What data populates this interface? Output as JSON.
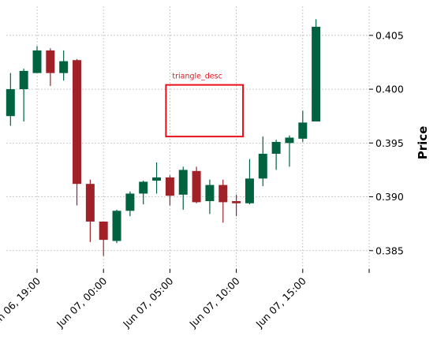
{
  "chart_data": {
    "type": "candlestick",
    "title": "",
    "ylabel": "Price",
    "xlabel": "",
    "y_axis_side": "right",
    "ylim": [
      0.3833,
      0.4077
    ],
    "yticks": [
      0.385,
      0.39,
      0.395,
      0.4,
      0.405
    ],
    "ytick_labels": [
      "0.385",
      "0.390",
      "0.395",
      "0.400",
      "0.405"
    ],
    "xticks": [
      {
        "index": 0,
        "label": ""
      },
      {
        "index": 5,
        "label": "Jun 06, 19:00"
      },
      {
        "index": 10,
        "label": "Jun 07, 00:00"
      },
      {
        "index": 15,
        "label": "Jun 07, 05:00"
      },
      {
        "index": 20,
        "label": "Jun 07, 10:00"
      },
      {
        "index": 25,
        "label": "Jun 07, 15:00"
      },
      {
        "index": 30,
        "label": ""
      }
    ],
    "grid": true,
    "colors": {
      "up": "#006340",
      "down": "#a02128",
      "annotation": "#e8101a",
      "grid": "#b0b0b0"
    },
    "candles": [
      {
        "i": 3,
        "open": 0.3975,
        "high": 0.4015,
        "low": 0.3966,
        "close": 0.4
      },
      {
        "i": 4,
        "open": 0.4,
        "high": 0.4019,
        "low": 0.397,
        "close": 0.4017
      },
      {
        "i": 5,
        "open": 0.4015,
        "high": 0.404,
        "low": 0.4015,
        "close": 0.4036
      },
      {
        "i": 6,
        "open": 0.4036,
        "high": 0.4038,
        "low": 0.4003,
        "close": 0.4015
      },
      {
        "i": 7,
        "open": 0.4015,
        "high": 0.4036,
        "low": 0.4008,
        "close": 0.4026
      },
      {
        "i": 8,
        "open": 0.4027,
        "high": 0.4028,
        "low": 0.3892,
        "close": 0.3912
      },
      {
        "i": 9,
        "open": 0.3912,
        "high": 0.3916,
        "low": 0.3858,
        "close": 0.3877
      },
      {
        "i": 10,
        "open": 0.3877,
        "high": 0.3877,
        "low": 0.3845,
        "close": 0.386
      },
      {
        "i": 11,
        "open": 0.3859,
        "high": 0.3888,
        "low": 0.3857,
        "close": 0.3887
      },
      {
        "i": 12,
        "open": 0.3887,
        "high": 0.3905,
        "low": 0.3882,
        "close": 0.3903
      },
      {
        "i": 13,
        "open": 0.3903,
        "high": 0.3915,
        "low": 0.3893,
        "close": 0.3914
      },
      {
        "i": 14,
        "open": 0.3915,
        "high": 0.3932,
        "low": 0.3903,
        "close": 0.3918
      },
      {
        "i": 15,
        "open": 0.3918,
        "high": 0.392,
        "low": 0.3892,
        "close": 0.3901
      },
      {
        "i": 16,
        "open": 0.3902,
        "high": 0.3928,
        "low": 0.3888,
        "close": 0.3925
      },
      {
        "i": 17,
        "open": 0.3924,
        "high": 0.3928,
        "low": 0.3894,
        "close": 0.3895
      },
      {
        "i": 18,
        "open": 0.3896,
        "high": 0.3916,
        "low": 0.3884,
        "close": 0.3911
      },
      {
        "i": 19,
        "open": 0.3911,
        "high": 0.3916,
        "low": 0.3876,
        "close": 0.3895
      },
      {
        "i": 20,
        "open": 0.3896,
        "high": 0.3902,
        "low": 0.3882,
        "close": 0.3894
      },
      {
        "i": 21,
        "open": 0.3894,
        "high": 0.3935,
        "low": 0.3893,
        "close": 0.3917
      },
      {
        "i": 22,
        "open": 0.3917,
        "high": 0.3956,
        "low": 0.391,
        "close": 0.394
      },
      {
        "i": 23,
        "open": 0.394,
        "high": 0.3953,
        "low": 0.3925,
        "close": 0.3951
      },
      {
        "i": 24,
        "open": 0.395,
        "high": 0.3957,
        "low": 0.3928,
        "close": 0.3955
      },
      {
        "i": 25,
        "open": 0.3954,
        "high": 0.398,
        "low": 0.3951,
        "close": 0.3969
      },
      {
        "i": 26,
        "open": 0.397,
        "high": 0.4065,
        "low": 0.397,
        "close": 0.4058
      }
    ],
    "annotations": [
      {
        "label": "triangle_desc",
        "x_start": 15,
        "x_end": 20.5,
        "y_low": 0.3956,
        "y_high": 0.4004
      }
    ]
  }
}
